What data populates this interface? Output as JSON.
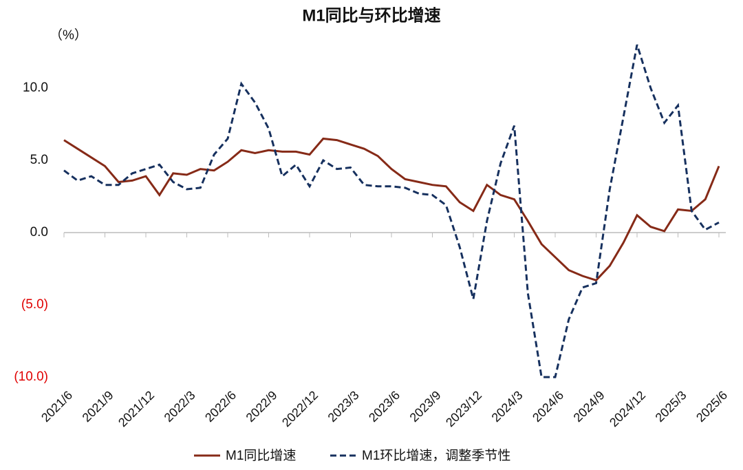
{
  "chart_data": {
    "type": "line",
    "title": "M1同比与环比增速",
    "y_unit_label": "（%）",
    "categories": [
      "2021/6",
      null,
      null,
      "2021/9",
      null,
      null,
      "2021/12",
      null,
      null,
      "2022/3",
      null,
      null,
      "2022/6",
      null,
      null,
      "2022/9",
      null,
      null,
      "2022/12",
      null,
      null,
      "2023/3",
      null,
      null,
      "2023/6",
      null,
      null,
      "2023/9",
      null,
      null,
      "2023/12",
      null,
      null,
      "2024/3",
      null,
      null,
      "2024/6",
      null,
      null,
      "2024/9",
      null,
      null,
      "2024/12",
      null,
      null,
      "2025/3",
      null,
      null,
      "2025/6"
    ],
    "series": [
      {
        "name": "M1同比增速",
        "color": "#862a17",
        "dash": "solid",
        "values": [
          6.4,
          5.8,
          5.2,
          4.6,
          3.5,
          3.6,
          3.9,
          2.6,
          4.1,
          4.0,
          4.4,
          4.3,
          4.9,
          5.7,
          5.5,
          5.7,
          5.6,
          5.6,
          5.4,
          6.5,
          6.4,
          6.1,
          5.8,
          5.3,
          4.4,
          3.7,
          3.5,
          3.3,
          3.2,
          2.1,
          1.5,
          3.3,
          2.6,
          2.3,
          0.8,
          -0.8,
          -1.7,
          -2.6,
          -3.0,
          -3.3,
          -2.3,
          -0.7,
          1.2,
          0.4,
          0.1,
          1.6,
          1.5,
          2.3,
          4.6
        ]
      },
      {
        "name": "M1环比增速，调整季节性",
        "color": "#16305e",
        "dash": "dashed",
        "values": [
          4.3,
          3.6,
          3.9,
          3.3,
          3.3,
          4.1,
          4.4,
          4.7,
          3.5,
          3.0,
          3.1,
          5.4,
          6.5,
          10.3,
          9.0,
          7.2,
          3.9,
          4.7,
          3.2,
          5.0,
          4.4,
          4.5,
          3.3,
          3.2,
          3.2,
          3.1,
          2.7,
          2.6,
          1.9,
          -1.0,
          -4.6,
          0.8,
          4.8,
          7.4,
          -4.2,
          -10,
          -10,
          -6.0,
          -3.8,
          -3.5,
          3.0,
          8.0,
          13.0,
          10.0,
          7.6,
          8.8,
          1.5,
          0.2,
          0.7
        ]
      }
    ],
    "ylim": [
      -10,
      13
    ],
    "yticks": [
      {
        "value": 10,
        "label": "10.0"
      },
      {
        "value": 5,
        "label": "5.0"
      },
      {
        "value": 0,
        "label": "0.0"
      },
      {
        "value": -5,
        "label": "(5.0)"
      },
      {
        "value": -10,
        "label": "(10.0)"
      }
    ],
    "negative_tick_color": "#e00000",
    "grid": false,
    "legend": "bottom"
  }
}
